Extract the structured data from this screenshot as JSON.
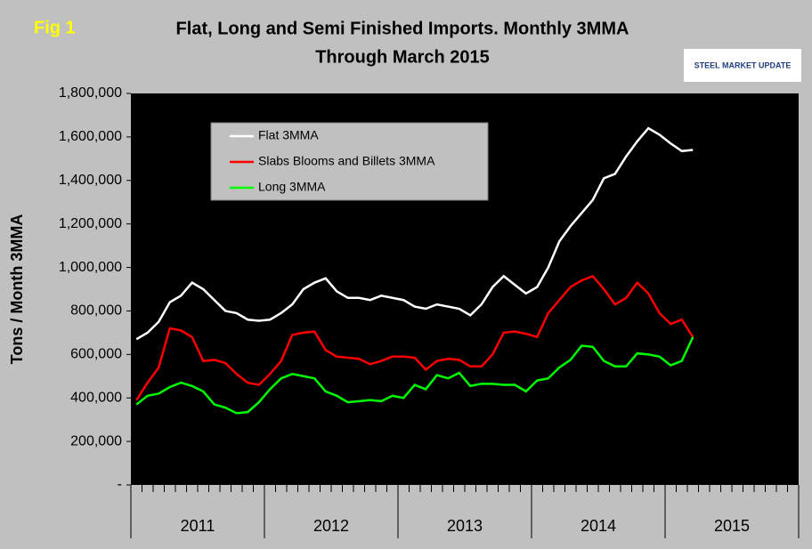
{
  "chart_data": {
    "type": "line",
    "fig_label": "Fig 1",
    "title": "Flat, Long and Semi Finished Imports. Monthly 3MMA",
    "subtitle": "Through March 2015",
    "logo": "STEEL MARKET UPDATE",
    "y_label": "Tons / Month 3MMA",
    "year_groups": [
      "2011",
      "2012",
      "2013",
      "2014",
      "2015"
    ],
    "months_per_group": 12,
    "categories": [
      null,
      null,
      null,
      null,
      null,
      null,
      null,
      null,
      null,
      null,
      null,
      null,
      null,
      null,
      null,
      null,
      null,
      null,
      null,
      null,
      null,
      null,
      null,
      null,
      null,
      null,
      null,
      null,
      null,
      null,
      null,
      null,
      null,
      null,
      null,
      null,
      null,
      null,
      null,
      null,
      null,
      null,
      null,
      null,
      null,
      null,
      null,
      null,
      null,
      null,
      null,
      null,
      null,
      null,
      null,
      null,
      null,
      null,
      null,
      null
    ],
    "ylim": [
      0,
      1800000
    ],
    "yticks": [
      {
        "value": 0,
        "label": "-"
      },
      {
        "value": 200000,
        "label": "200,000"
      },
      {
        "value": 400000,
        "label": "400,000"
      },
      {
        "value": 600000,
        "label": "600,000"
      },
      {
        "value": 800000,
        "label": "800,000"
      },
      {
        "value": 1000000,
        "label": "1,000,000"
      },
      {
        "value": 1200000,
        "label": "1,200,000"
      },
      {
        "value": 1400000,
        "label": "1,400,000"
      },
      {
        "value": 1600000,
        "label": "1,600,000"
      },
      {
        "value": 1800000,
        "label": "1,800,000"
      }
    ],
    "grid": false,
    "legend": "upper left",
    "series": [
      {
        "name": "Flat 3MMA",
        "color": "#ffffff",
        "values": [
          670000,
          700000,
          750000,
          840000,
          870000,
          930000,
          900000,
          850000,
          800000,
          790000,
          760000,
          755000,
          760000,
          790000,
          830000,
          900000,
          930000,
          950000,
          890000,
          860000,
          860000,
          850000,
          870000,
          860000,
          850000,
          820000,
          810000,
          830000,
          820000,
          810000,
          780000,
          830000,
          910000,
          960000,
          920000,
          880000,
          910000,
          1000000,
          1120000,
          1190000,
          1250000,
          1310000,
          1410000,
          1430000,
          1510000,
          1580000,
          1640000,
          1610000,
          1570000,
          1535000,
          1540000,
          null,
          null,
          null,
          null,
          null,
          null,
          null,
          null,
          null
        ]
      },
      {
        "name": "Slabs Blooms and Billets 3MMA",
        "color": "#ff0000",
        "values": [
          390000,
          470000,
          540000,
          720000,
          710000,
          680000,
          570000,
          575000,
          560000,
          510000,
          470000,
          460000,
          510000,
          570000,
          690000,
          700000,
          705000,
          620000,
          590000,
          585000,
          580000,
          555000,
          570000,
          590000,
          590000,
          585000,
          530000,
          570000,
          580000,
          575000,
          545000,
          545000,
          600000,
          700000,
          705000,
          695000,
          680000,
          790000,
          850000,
          910000,
          940000,
          960000,
          900000,
          830000,
          860000,
          930000,
          880000,
          790000,
          740000,
          760000,
          680000,
          null,
          null,
          null,
          null,
          null,
          null,
          null,
          null,
          null
        ]
      },
      {
        "name": "Long 3MMA",
        "color": "#00ff00",
        "values": [
          370000,
          410000,
          420000,
          450000,
          470000,
          455000,
          430000,
          370000,
          355000,
          330000,
          335000,
          380000,
          440000,
          490000,
          510000,
          500000,
          490000,
          430000,
          410000,
          380000,
          385000,
          390000,
          385000,
          410000,
          400000,
          460000,
          440000,
          505000,
          490000,
          515000,
          455000,
          465000,
          465000,
          460000,
          460000,
          430000,
          480000,
          490000,
          540000,
          575000,
          640000,
          635000,
          570000,
          545000,
          545000,
          605000,
          600000,
          590000,
          550000,
          570000,
          680000,
          null,
          null,
          null,
          null,
          null,
          null,
          null,
          null,
          null
        ]
      }
    ]
  }
}
